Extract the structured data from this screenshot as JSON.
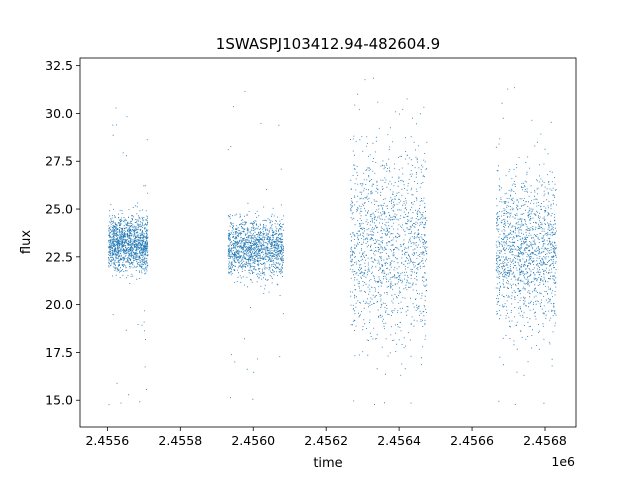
{
  "chart_data": {
    "type": "scatter",
    "title": "1SWASPJ103412.94-482604.9",
    "xlabel": "time",
    "ylabel": "flux",
    "x_offset_label": "1e6",
    "xlim": [
      2455525,
      2456885
    ],
    "ylim": [
      13.6,
      32.9
    ],
    "x_ticks": [
      2455600,
      2455800,
      2456000,
      2456200,
      2456400,
      2456600,
      2456800
    ],
    "x_tick_labels": [
      "2.4556",
      "2.4558",
      "2.4560",
      "2.4562",
      "2.4564",
      "2.4566",
      "2.4568"
    ],
    "y_ticks": [
      15.0,
      17.5,
      20.0,
      22.5,
      25.0,
      27.5,
      30.0,
      32.5
    ],
    "y_tick_labels": [
      "15.0",
      "17.5",
      "20.0",
      "22.5",
      "25.0",
      "27.5",
      "30.0",
      "32.5"
    ],
    "grid": false,
    "marker_color": "#1f77b4",
    "segments": [
      {
        "x_range": [
          2455602,
          2455710
        ],
        "center": 23.2,
        "spread_low": 21.8,
        "spread_high": 24.6,
        "outliers_low": 14.6,
        "outliers_high": 30.5
      },
      {
        "x_range": [
          2455930,
          2456082
        ],
        "center": 23.0,
        "spread_low": 21.5,
        "spread_high": 24.6,
        "outliers_low": 14.7,
        "outliers_high": 31.3
      },
      {
        "x_range": [
          2456265,
          2456475
        ],
        "center": 23.2,
        "spread_low": 18.3,
        "spread_high": 28.2,
        "outliers_low": 14.5,
        "outliers_high": 32.0
      },
      {
        "x_range": [
          2456665,
          2456830
        ],
        "center": 22.9,
        "spread_low": 19.3,
        "spread_high": 27.2,
        "outliers_low": 14.5,
        "outliers_high": 31.5
      }
    ]
  }
}
